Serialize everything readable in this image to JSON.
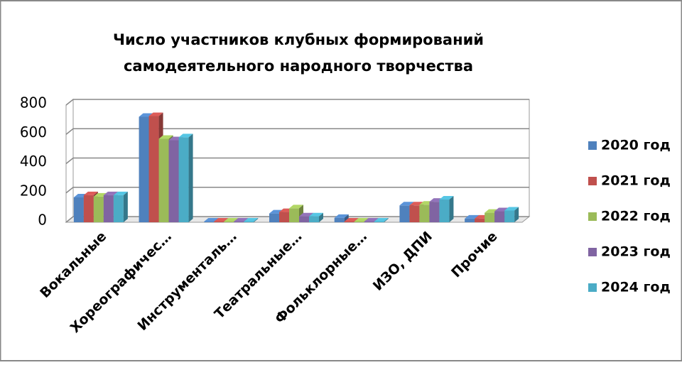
{
  "chart_data": {
    "type": "bar3d",
    "title": [
      "Число участников клубных формирований",
      "самодеятельного народного творчества"
    ],
    "categories": [
      "Вокальные",
      "Хореографичес…",
      "Инструменталь…",
      "Театральные…",
      "Фольклорные…",
      "ИЗО, ДПИ",
      "Прочие"
    ],
    "series": [
      {
        "name": "2020 год",
        "color": "#4f81bd",
        "values": [
          170,
          720,
          5,
          60,
          30,
          115,
          25
        ]
      },
      {
        "name": "2021 год",
        "color": "#c0504d",
        "values": [
          185,
          725,
          5,
          70,
          5,
          115,
          25
        ]
      },
      {
        "name": "2022 год",
        "color": "#9bbb59",
        "values": [
          175,
          570,
          5,
          95,
          5,
          120,
          65
        ]
      },
      {
        "name": "2023 год",
        "color": "#8064a2",
        "values": [
          185,
          560,
          5,
          40,
          5,
          140,
          75
        ]
      },
      {
        "name": "2024 год",
        "color": "#4bacc6",
        "values": [
          185,
          580,
          5,
          40,
          5,
          155,
          80
        ]
      }
    ],
    "ylim": [
      0,
      800
    ],
    "yticks": [
      0,
      200,
      400,
      600,
      800
    ],
    "grid": true,
    "legend": "right"
  }
}
